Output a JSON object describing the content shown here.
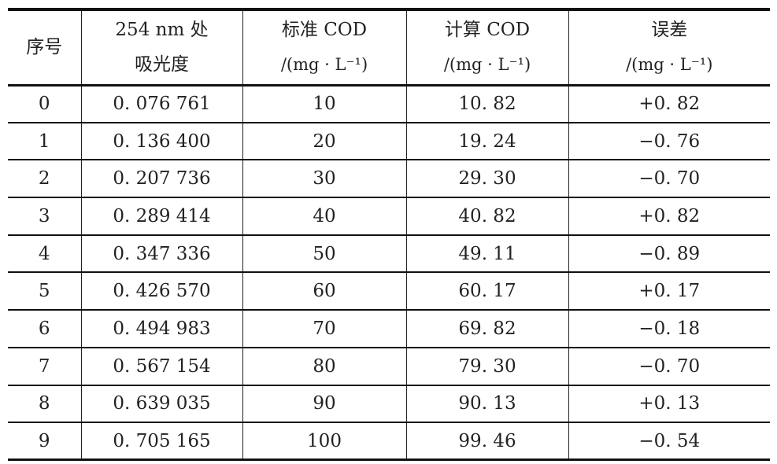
{
  "table": {
    "headers": [
      {
        "line1": "序号",
        "line2": ""
      },
      {
        "line1": "254 nm 处",
        "line2": "吸光度"
      },
      {
        "line1": "标准 COD",
        "line2": "/(mg · L⁻¹)"
      },
      {
        "line1": "计算 COD",
        "line2": "/(mg · L⁻¹)"
      },
      {
        "line1": "误差",
        "line2": "/(mg · L⁻¹)"
      }
    ],
    "rows": [
      [
        "0",
        "0. 076 761",
        "10",
        "10. 82",
        "+0. 82"
      ],
      [
        "1",
        "0. 136 400",
        "20",
        "19. 24",
        "−0. 76"
      ],
      [
        "2",
        "0. 207 736",
        "30",
        "29. 30",
        "−0. 70"
      ],
      [
        "3",
        "0. 289 414",
        "40",
        "40. 82",
        "+0. 82"
      ],
      [
        "4",
        "0. 347 336",
        "50",
        "49. 11",
        "−0. 89"
      ],
      [
        "5",
        "0. 426 570",
        "60",
        "60. 17",
        "+0. 17"
      ],
      [
        "6",
        "0. 494 983",
        "70",
        "69. 82",
        "−0. 18"
      ],
      [
        "7",
        "0. 567 154",
        "80",
        "79. 30",
        "−0. 70"
      ],
      [
        "8",
        "0. 639 035",
        "90",
        "90. 13",
        "+0. 13"
      ],
      [
        "9",
        "0. 705 165",
        "100",
        "99. 46",
        "−0. 54"
      ]
    ]
  }
}
